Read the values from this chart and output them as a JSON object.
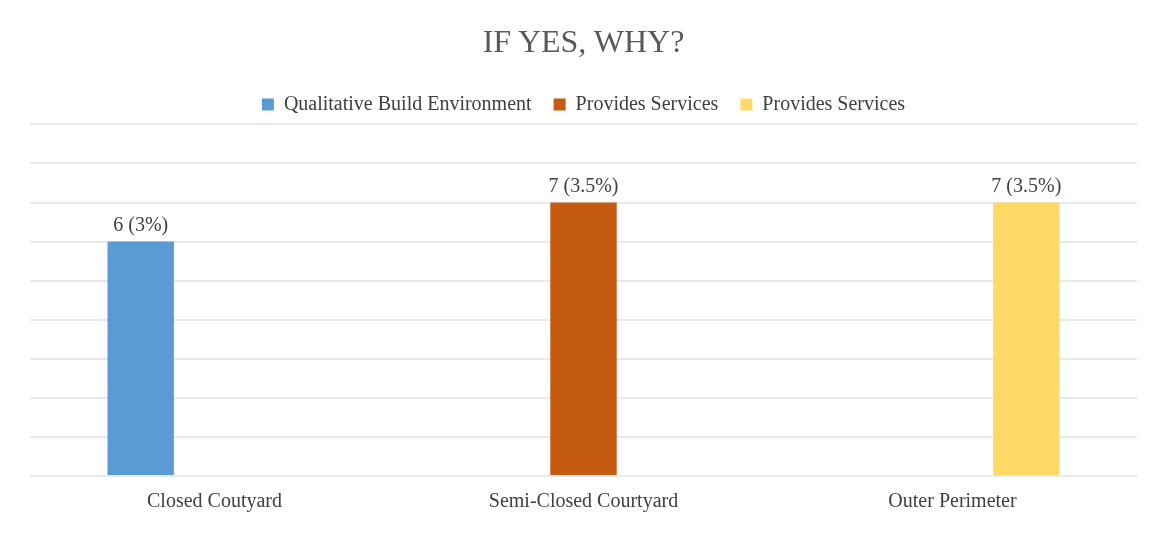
{
  "chart_data": {
    "type": "bar",
    "title": "IF YES, WHY?",
    "categories": [
      "Closed Coutyard",
      "Semi-Closed Courtyard",
      "Outer Perimeter"
    ],
    "series": [
      {
        "name": "Qualitative Build Environment",
        "color": "#5b9bd5",
        "values": [
          6,
          null,
          null
        ],
        "value_labels": [
          "6 (3%)",
          null,
          null
        ]
      },
      {
        "name": "Provides Services",
        "color": "#c55a11",
        "values": [
          null,
          7,
          null
        ],
        "value_labels": [
          null,
          "7 (3.5%)",
          null
        ]
      },
      {
        "name": "Provides Services",
        "color": "#ffd966",
        "values": [
          null,
          null,
          7
        ],
        "value_labels": [
          null,
          null,
          "7 (3.5%)"
        ]
      }
    ],
    "ylim": [
      0,
      9
    ],
    "yticks": [
      {
        "value": 0,
        "label": null
      },
      {
        "value": 1,
        "label": null
      },
      {
        "value": 2,
        "label": null
      },
      {
        "value": 3,
        "label": null
      },
      {
        "value": 4,
        "label": null
      },
      {
        "value": 5,
        "label": null
      },
      {
        "value": 6,
        "label": null
      },
      {
        "value": 7,
        "label": null
      },
      {
        "value": 8,
        "label": null
      },
      {
        "value": 9,
        "label": null
      }
    ],
    "grid": "y",
    "legend": "top",
    "tick_labels": "x"
  }
}
